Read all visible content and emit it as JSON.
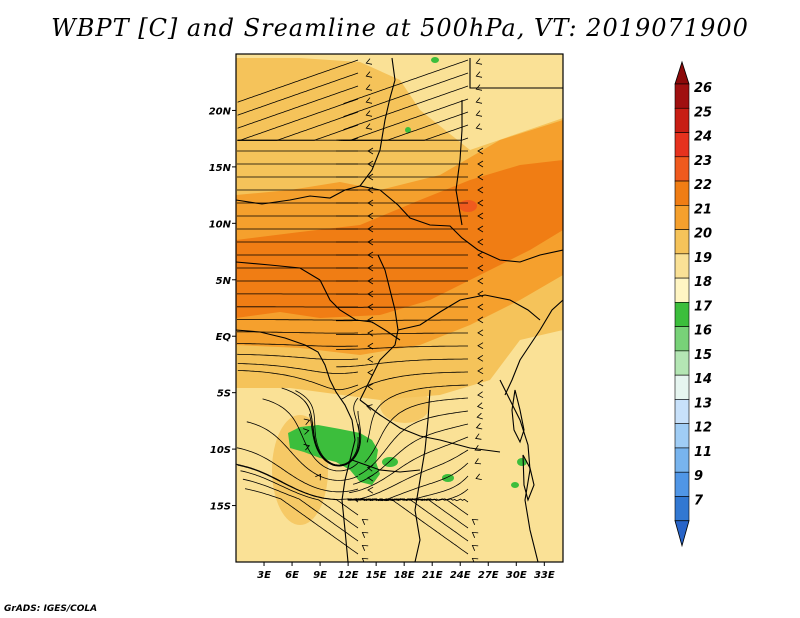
{
  "title": "WBPT [C] and Sreamline at 500hPa, VT: 2019071900",
  "credit": "GrADS: IGES/COLA",
  "map": {
    "lon_range": [
      0,
      35
    ],
    "lat_range": [
      -20,
      25
    ],
    "x_ticks": [
      "3E",
      "6E",
      "9E",
      "12E",
      "15E",
      "18E",
      "21E",
      "24E",
      "27E",
      "30E",
      "33E"
    ],
    "x_tick_values": [
      3,
      6,
      9,
      12,
      15,
      18,
      21,
      24,
      27,
      30,
      33
    ],
    "y_ticks": [
      "20N",
      "15N",
      "10N",
      "5N",
      "EQ",
      "5S",
      "10S",
      "15S"
    ],
    "y_tick_values": [
      20,
      15,
      10,
      5,
      0,
      -5,
      -10,
      -15
    ]
  },
  "colorbar": {
    "labels": [
      "26",
      "25",
      "24",
      "23",
      "22",
      "21",
      "20",
      "19",
      "18",
      "17",
      "16",
      "15",
      "14",
      "13",
      "12",
      "11",
      "9",
      "7"
    ],
    "colors": [
      "#a01010",
      "#c81e14",
      "#e6321e",
      "#f05a1e",
      "#f07d14",
      "#f5a02d",
      "#f5c35a",
      "#fae196",
      "#fff5c3",
      "#3cbe3c",
      "#78d278",
      "#b4e6b4",
      "#e6f5f0",
      "#c8e1fa",
      "#a0cdf5",
      "#78b4ee",
      "#5096e6",
      "#3278d2"
    ],
    "top_arrow_color": "#8c0a0a",
    "bottom_arrow_color": "#2864c8"
  },
  "palette": {
    "land_base": "#fae196",
    "wbpt_20": "#f5c35a",
    "wbpt_21": "#f5a02d",
    "wbpt_22": "#f07d14",
    "wbpt_23": "#f05a1e",
    "wbpt_17": "#3cbe3c"
  }
}
